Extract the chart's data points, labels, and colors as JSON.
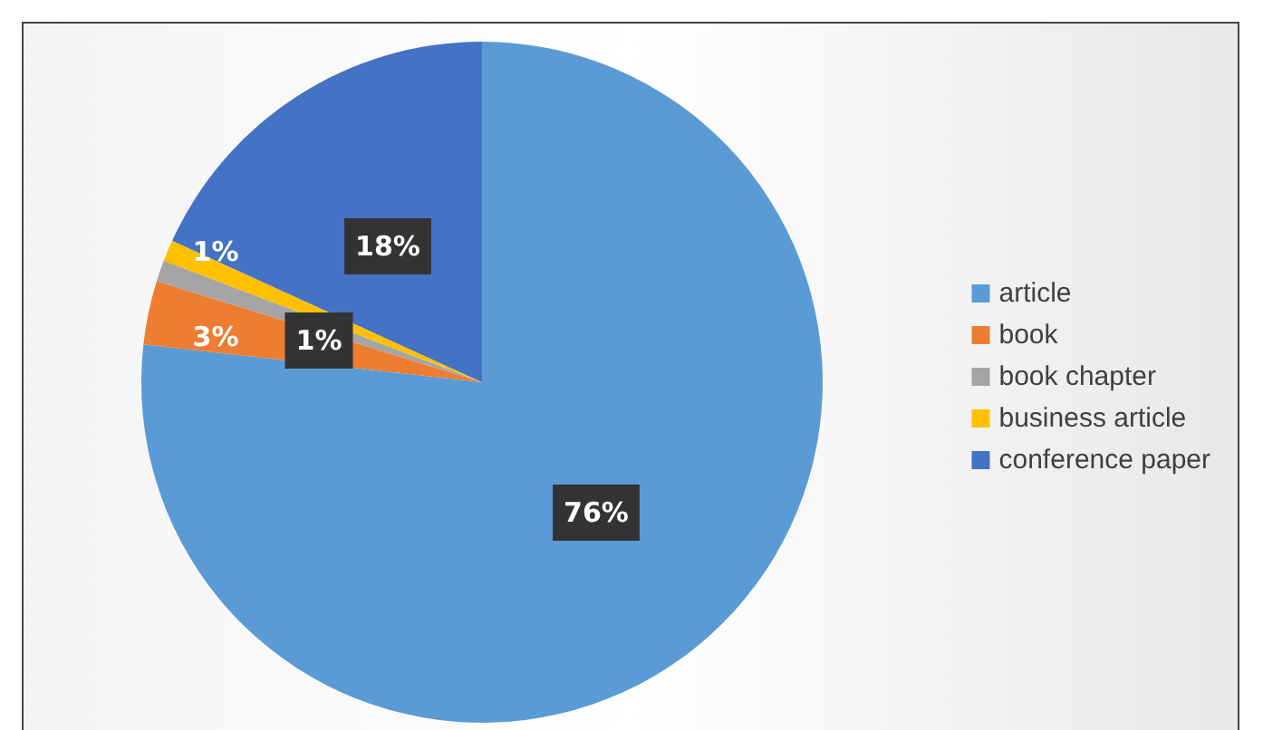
{
  "chart_data": {
    "type": "pie",
    "categories": [
      "article",
      "book",
      "book chapter",
      "business article",
      "conference paper"
    ],
    "values": [
      76,
      3,
      1,
      1,
      18
    ],
    "colors": [
      "#5b9bd5",
      "#ed7d31",
      "#a5a5a5",
      "#ffc000",
      "#4472c4"
    ],
    "value_labels": [
      "76%",
      "3%",
      "1%",
      "1%",
      "18%"
    ],
    "legend": "right"
  }
}
